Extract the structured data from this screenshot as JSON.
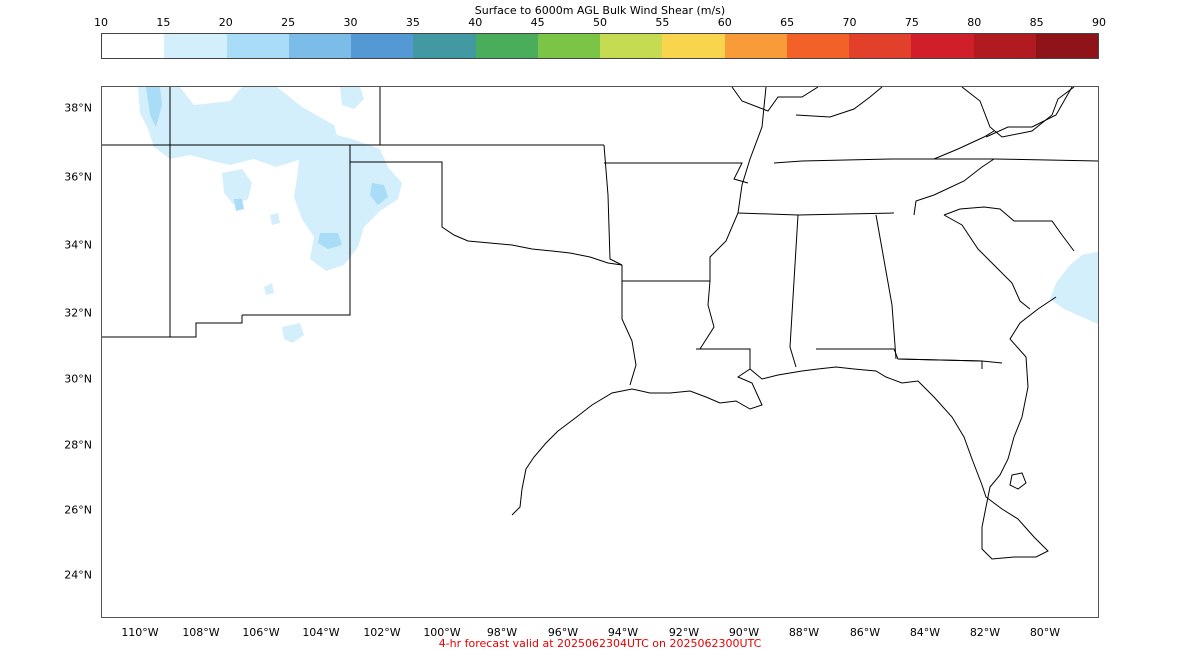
{
  "colorbar": {
    "title": "Surface to 6000m AGL Bulk Wind Shear (m/s)",
    "ticks": [
      "10",
      "15",
      "20",
      "25",
      "30",
      "35",
      "40",
      "45",
      "50",
      "55",
      "60",
      "65",
      "70",
      "75",
      "80",
      "85",
      "90"
    ],
    "colors": [
      "#ffffff",
      "#d3effc",
      "#a9ddf7",
      "#7bbde8",
      "#5599d4",
      "#4399a1",
      "#4aad5b",
      "#7bc447",
      "#c5dc52",
      "#f9d54e",
      "#f89b38",
      "#f26127",
      "#e3402b",
      "#d01f2b",
      "#b01a20",
      "#8e1419"
    ]
  },
  "map": {
    "lat_labels": [
      "38°N",
      "36°N",
      "34°N",
      "32°N",
      "30°N",
      "28°N",
      "26°N",
      "24°N"
    ],
    "lon_labels": [
      "110°W",
      "108°W",
      "106°W",
      "104°W",
      "102°W",
      "100°W",
      "98°W",
      "96°W",
      "94°W",
      "92°W",
      "90°W",
      "88°W",
      "86°W",
      "84°W",
      "82°W",
      "80°W"
    ],
    "shear_fill_color": "#d3effc",
    "shear_fill_dark_color": "#a9ddf7",
    "border_color": "#000000"
  },
  "footer": {
    "text": "4-hr forecast valid at 2025062304UTC on 2025062300UTC",
    "color": "#e60000"
  }
}
